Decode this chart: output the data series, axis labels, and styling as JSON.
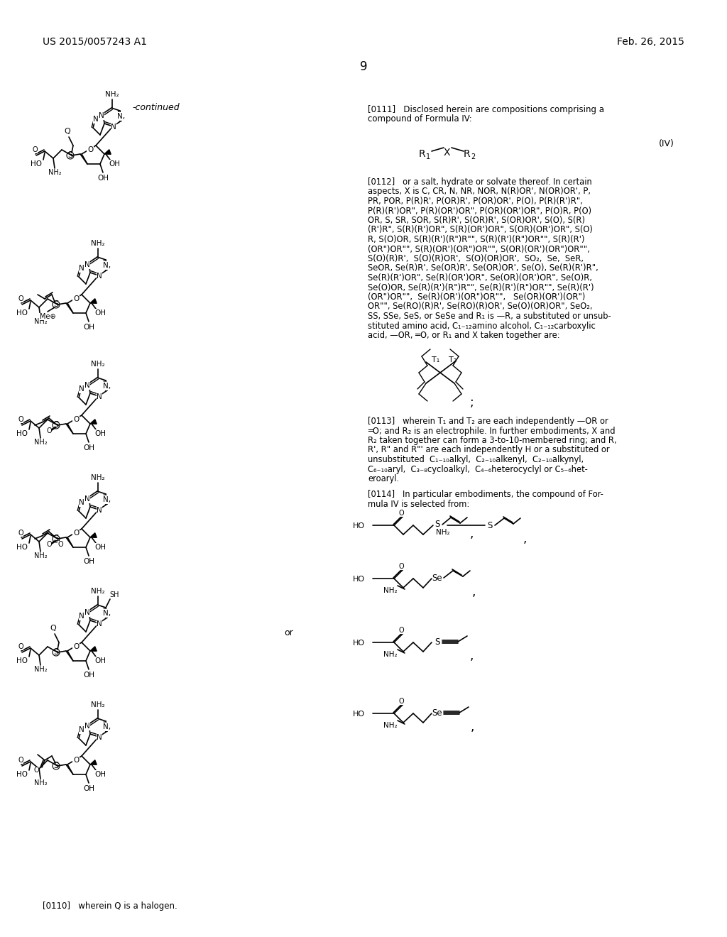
{
  "background_color": "#ffffff",
  "header_left": "US 2015/0057243 A1",
  "header_right": "Feb. 26, 2015",
  "page_number": "9",
  "continued_label": "-continued",
  "paragraph_0111": "[0111]   Disclosed herein are compositions comprising a\ncompound of Formula IV:",
  "paragraph_0112_lines": [
    "[0112]   or a salt, hydrate or solvate thereof. In certain",
    "aspects, X is C, CR, N, NR, NOR, N(R)OR', N(OR)OR', P,",
    "PR, POR, P(R)R', P(OR)R', P(OR)OR', P(O), P(R)(R')R\",",
    "P(R)(R')OR\", P(R)(OR')OR\", P(OR)(OR')OR\", P(O)R, P(O)",
    "OR, S, SR, SOR, S(R)R', S(OR)R', S(OR)OR', S(O), S(R)",
    "(R')R\", S(R)(R')OR\", S(R)(OR')OR\", S(OR)(OR')OR\", S(O)",
    "R, S(O)OR, S(R)(R')(R\")R\"\", S(R)(R')(R\")OR\"\", S(R)(R')",
    "(OR\")OR\"\", S(R)(OR')(OR\")OR\"\", S(OR)(OR')(OR\")OR\"\",",
    "S(O)(R)R',  S(O)(R)OR',  S(O)(OR)OR',  SO₂,  Se,  SeR,",
    "SeOR, Se(R)R', Se(OR)R', Se(OR)OR', Se(O), Se(R)(R')R\",",
    "Se(R)(R')OR\", Se(R)(OR')OR\", Se(OR)(OR')OR\", Se(O)R,",
    "Se(O)OR, Se(R)(R')(R\")R\"\", Se(R)(R')(R\")OR\"\", Se(R)(R')",
    "(OR\")OR\"\",  Se(R)(OR')(OR\")OR\"\",   Se(OR)(OR')(OR\")",
    "OR\"\", Se(RO)(R)R', Se(RO)(R)OR', Se(O)(OR)OR\", SeO₂,",
    "SS, SSe, SeS, or SeSe and R₁ is —R, a substituted or unsub-",
    "stituted amino acid, C₁₋₁₂amino alcohol, C₁₋₁₂carboxylic",
    "acid, —OR, ═O, or R₁ and X taken together are:"
  ],
  "paragraph_0113_lines": [
    "[0113]   wherein T₁ and T₂ are each independently —OR or",
    "═O; and R₂ is an electrophile. In further embodiments, X and",
    "R₂ taken together can form a 3-to-10-membered ring; and R,",
    "R', R\" and R\"' are each independently H or a substituted or",
    "unsubstituted  C₁₋₁₀alkyl,  C₂₋₁₀alkenyl,  C₂₋₁₀alkynyl,",
    "C₆₋₁₀aryl,  C₃₋₈cycloalkyl,  C₄₋₆heterocyclyl or C₅₋₆het-",
    "eroaryl."
  ],
  "paragraph_0114_lines": [
    "[0114]   In particular embodiments, the compound of For-",
    "mula IV is selected from:"
  ],
  "paragraph_0110": "[0110]   wherein Q is a halogen."
}
